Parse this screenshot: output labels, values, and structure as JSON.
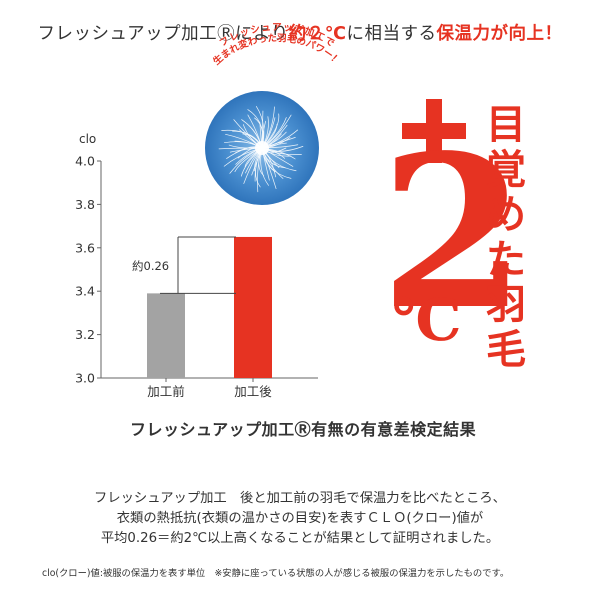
{
  "headline": {
    "part1": "フレッシュアップ加工Ⓡにより",
    "part2": "約２℃",
    "part3": "に相当する",
    "part4": "保温力が向上！"
  },
  "badge": {
    "line1": "フレッシュアップ加工で",
    "line2": "生まれ変わった羽毛のパワー！"
  },
  "big_plus": "+",
  "big_number": "2",
  "big_unit": "℃",
  "vertical_text": [
    "目",
    "覚",
    "め",
    "た",
    "羽",
    "毛"
  ],
  "subtitle": "フレッシュアップ加工Ⓡ有無の有意差検定結果",
  "description": [
    "フレッシュアップ加工　後と加工前の羽毛で保温力を比べたところ、",
    "衣類の熱抵抗(衣類の温かさの目安)を表すＣＬＯ(クロー)値が",
    "平均0.26＝約2℃以上高くなることが結果として証明されました。"
  ],
  "footnote": "clo(クロー)値:被服の保温力を表す単位　※安静に座っている状態の人が感じる被服の保温力を示したものです。",
  "colors": {
    "accent": "#e63322",
    "gray_bar": "#a3a3a3",
    "circle": "#3f86c9"
  },
  "chart_data": {
    "type": "bar",
    "categories": [
      "加工前",
      "加工後"
    ],
    "values": [
      3.39,
      3.65
    ],
    "ylabel": "clo",
    "ylim": [
      3.0,
      4.0
    ],
    "yticks": [
      "3.0",
      "3.2",
      "3.4",
      "3.6",
      "3.8",
      "4.0"
    ],
    "bar_colors": [
      "#a3a3a3",
      "#e63322"
    ],
    "annotation": "約0.26",
    "grid": false
  }
}
